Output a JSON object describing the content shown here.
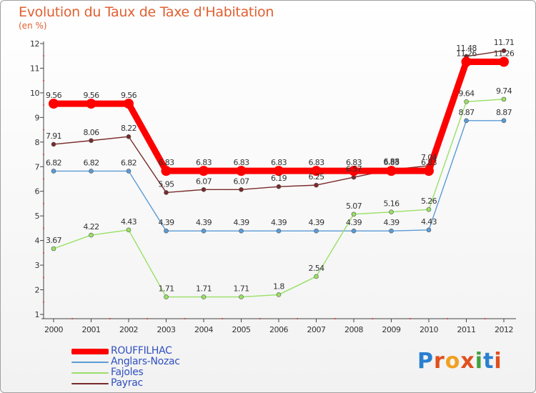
{
  "chart_data": {
    "type": "line",
    "title": "Evolution du Taux de Taxe d'Habitation",
    "subtitle": "(en %)",
    "xlabel": "",
    "ylabel": "",
    "ylim": [
      1,
      12
    ],
    "grid": false,
    "legend_position": "bottom-left",
    "categories": [
      "2000",
      "2001",
      "2002",
      "2003",
      "2004",
      "2005",
      "2006",
      "2007",
      "2008",
      "2009",
      "2010",
      "2011",
      "2012"
    ],
    "y_ticks": [
      1,
      2,
      3,
      4,
      5,
      6,
      7,
      8,
      9,
      10,
      11,
      12
    ],
    "series": [
      {
        "name": "ROUFFILHAC",
        "color": "#ff0000",
        "values": [
          9.56,
          9.56,
          9.56,
          6.83,
          6.83,
          6.83,
          6.83,
          6.83,
          6.83,
          6.83,
          6.83,
          11.26,
          11.26
        ],
        "labels": [
          "9.56",
          "9.56",
          "9.56",
          "6.83",
          "6.83",
          "6.83",
          "6.83",
          "6.83",
          "6.83",
          "6.83",
          "6.83",
          "11.26",
          "11.26"
        ]
      },
      {
        "name": "Anglars-Nozac",
        "color": "#5b9bd5",
        "values": [
          6.82,
          6.82,
          6.82,
          4.39,
          4.39,
          4.39,
          4.39,
          4.39,
          4.39,
          4.39,
          4.43,
          8.87,
          8.87
        ],
        "labels": [
          "6.82",
          "6.82",
          "6.82",
          "4.39",
          "4.39",
          "4.39",
          "4.39",
          "4.39",
          "4.39",
          "4.39",
          "4.43",
          "8.87",
          "8.87"
        ]
      },
      {
        "name": "Fajoles",
        "color": "#99e066",
        "values": [
          3.67,
          4.22,
          4.43,
          1.71,
          1.71,
          1.71,
          1.8,
          2.54,
          5.07,
          5.16,
          5.26,
          9.64,
          9.74
        ],
        "labels": [
          "3.67",
          "4.22",
          "4.43",
          "1.71",
          "1.71",
          "1.71",
          "1.8",
          "2.54",
          "5.07",
          "5.16",
          "5.26",
          "9.64",
          "9.74"
        ]
      },
      {
        "name": "Payrac",
        "color": "#7a2a2a",
        "values": [
          7.91,
          8.06,
          8.22,
          5.95,
          6.07,
          6.07,
          6.19,
          6.25,
          6.57,
          6.88,
          7.04,
          11.48,
          11.71
        ],
        "labels": [
          "7.91",
          "8.06",
          "8.22",
          "5.95",
          "6.07",
          "6.07",
          "6.19",
          "6.25",
          "6.57",
          "6.88",
          "7.04",
          "11.48",
          "11.71"
        ]
      }
    ]
  },
  "logo": {
    "letters": [
      "P",
      "r",
      "o",
      "x",
      "i",
      "t",
      "i"
    ],
    "colors": [
      "#2a7fd0",
      "#e05020",
      "#f0a020",
      "#e05020",
      "#40a040",
      "#2a7fd0",
      "#e05020"
    ]
  }
}
